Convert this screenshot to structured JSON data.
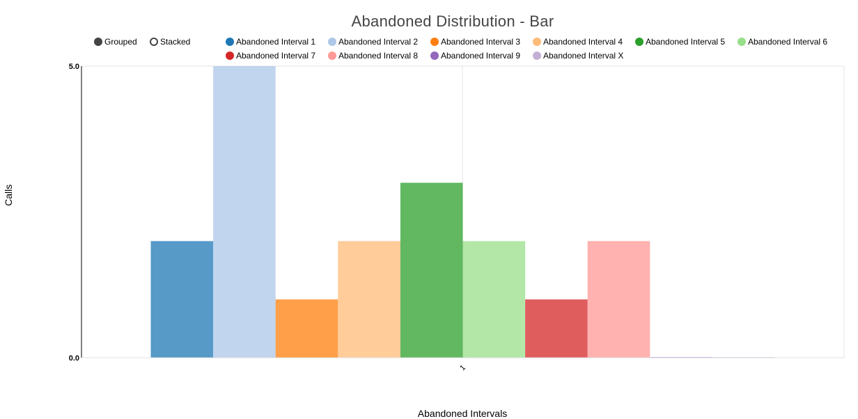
{
  "chart_data": {
    "type": "bar",
    "title": "Abandoned Distribution - Bar",
    "xlabel": "Abandoned Intervals",
    "ylabel": "Calls",
    "ylim": [
      0,
      5
    ],
    "y_ticks": [
      "0.0",
      "5.0"
    ],
    "categories": [
      "1"
    ],
    "grid": true,
    "legend_position": "top",
    "mode_options": [
      {
        "label": "Grouped",
        "selected": true
      },
      {
        "label": "Stacked",
        "selected": false
      }
    ],
    "series": [
      {
        "name": "Abandoned Interval 1",
        "color": "#1f77b4",
        "values": [
          2
        ]
      },
      {
        "name": "Abandoned Interval 2",
        "color": "#aec7e8",
        "values": [
          5
        ]
      },
      {
        "name": "Abandoned Interval 3",
        "color": "#ff7f0e",
        "values": [
          1
        ]
      },
      {
        "name": "Abandoned Interval 4",
        "color": "#ffbb78",
        "values": [
          2
        ]
      },
      {
        "name": "Abandoned Interval 5",
        "color": "#2ca02c",
        "values": [
          3
        ]
      },
      {
        "name": "Abandoned Interval 6",
        "color": "#98df8a",
        "values": [
          2
        ]
      },
      {
        "name": "Abandoned Interval 7",
        "color": "#d62728",
        "values": [
          1
        ]
      },
      {
        "name": "Abandoned Interval 8",
        "color": "#ff9896",
        "values": [
          2
        ]
      },
      {
        "name": "Abandoned Interval 9",
        "color": "#9467bd",
        "values": [
          0
        ]
      },
      {
        "name": "Abandoned Interval X",
        "color": "#c5b0d5",
        "values": [
          0
        ]
      }
    ]
  }
}
